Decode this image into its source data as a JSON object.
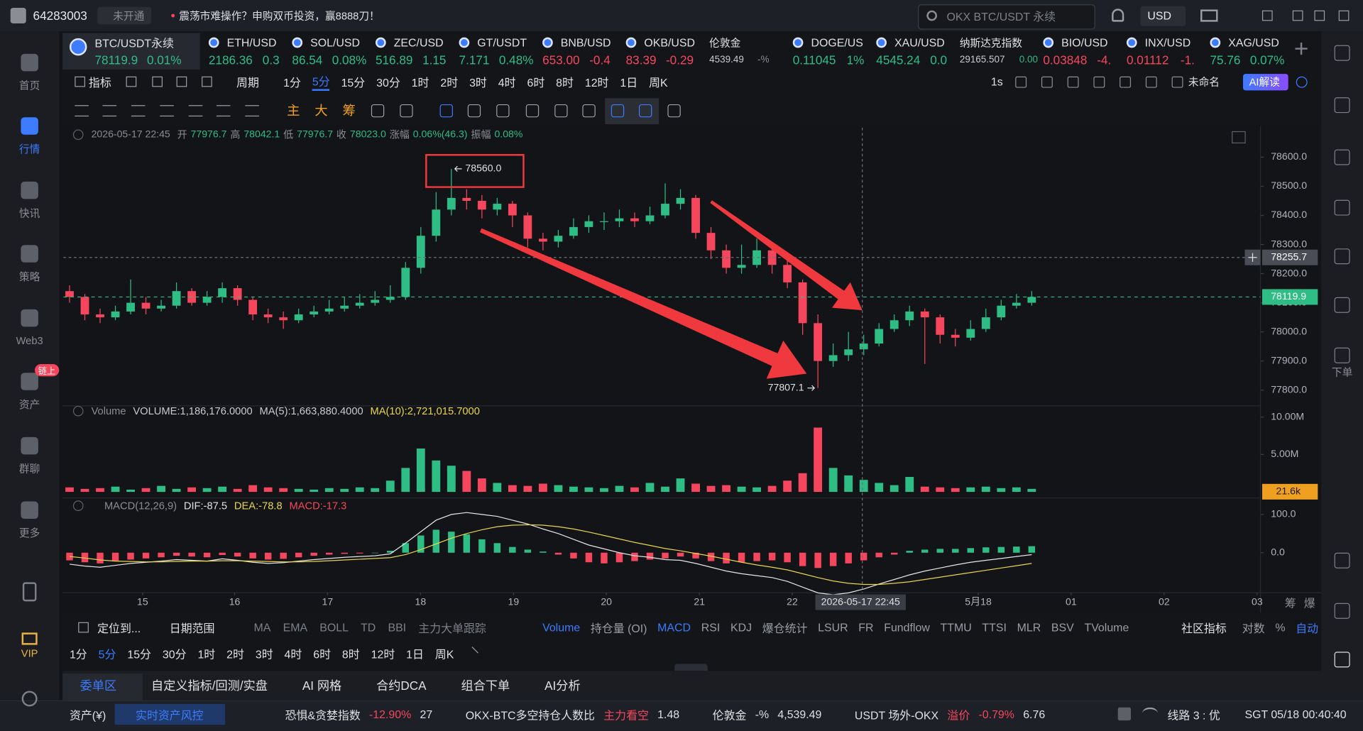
{
  "titlebar": {
    "uid": "64283003",
    "badge": "未开通",
    "notice": "震荡市难操作？申购双币投资，赢8888刀！",
    "search": "OKX BTC/USDT 永续",
    "currency": "USD"
  },
  "sidebar": {
    "items": [
      "首页",
      "行情",
      "快讯",
      "策略",
      "Web3",
      "资产",
      "群聊",
      "更多"
    ],
    "badge": "链上",
    "vip": "VIP"
  },
  "right_sidebar": {
    "order": "下单"
  },
  "tickers": [
    {
      "name": "BTC/USDT永续",
      "price": "78119.9",
      "change": "0.01%"
    },
    {
      "name": "ETH/USD",
      "price": "2186.36",
      "change": "0.3"
    },
    {
      "name": "SOL/USD",
      "price": "86.54",
      "change": "0.08%"
    },
    {
      "name": "ZEC/USD",
      "price": "516.89",
      "change": "1.15"
    },
    {
      "name": "GT/USDT",
      "price": "7.171",
      "change": "0.48%"
    },
    {
      "name": "BNB/USD",
      "price": "653.00",
      "change": "-0.4"
    },
    {
      "name": "OKB/USD",
      "price": "83.39",
      "change": "-0.29"
    },
    {
      "name": "伦敦金",
      "price": "4539.49",
      "change": "-%"
    },
    {
      "name": "DOGE/US",
      "price": "0.11045",
      "change": "1%"
    },
    {
      "name": "XAU/USD",
      "price": "4545.24",
      "change": "0.0"
    },
    {
      "name": "纳斯达克指数",
      "price": "29165.507",
      "change": "0.00"
    },
    {
      "name": "BIO/USD",
      "price": "0.03848",
      "change": "-4."
    },
    {
      "name": "INX/USD",
      "price": "0.01112",
      "change": "-1."
    },
    {
      "name": "XAG/USD",
      "price": "75.76",
      "change": "0.07%"
    }
  ],
  "toolbar": {
    "indicator": "指标",
    "period": "周期",
    "periods": [
      "1分",
      "5分",
      "15分",
      "30分",
      "1时",
      "2时",
      "3时",
      "4时",
      "6时",
      "8时",
      "12时",
      "1日",
      "周K"
    ],
    "interval": "1s",
    "layout": "未命名",
    "ai": "AI解读",
    "tools": [
      "主",
      "大",
      "筹"
    ]
  },
  "ohlc": [
    "2026-05-17 22:45",
    "开",
    "77976.7",
    "高",
    "78042.1",
    "低",
    "77976.7",
    "收",
    "78023.0",
    "涨幅",
    "0.06%(46.3)",
    "振幅",
    "0.08%"
  ],
  "volume_header": [
    "Volume",
    "VOLUME:1,186,176.0000",
    "MA(5):1,663,880.4000",
    "MA(10):2,721,015.7000"
  ],
  "macd_header": [
    "MACD(12,26,9)",
    "DIF:-87.5",
    "DEA:-78.8",
    "MACD:-17.3"
  ],
  "chart_side": [
    "筹",
    "爆"
  ],
  "indicators": {
    "locate": "定位到...",
    "range": "日期范围",
    "main": [
      "MA",
      "EMA",
      "BOLL",
      "TD",
      "BBI",
      "主力大单跟踪"
    ],
    "sub": [
      "Volume",
      "持仓量 (OI)",
      "MACD",
      "RSI",
      "KDJ",
      "爆仓统计",
      "LSUR",
      "FR",
      "Fundflow",
      "TTMU",
      "TTSI",
      "MLR",
      "BSV",
      "TVolume"
    ],
    "community": "社区指标",
    "options": [
      "对数",
      "%",
      "自动"
    ]
  },
  "tabs": [
    "委单区",
    "自定义指标/回测/实盘",
    "AI 网格",
    "合约DCA",
    "组合下单",
    "AI分析"
  ],
  "status": {
    "assets": "资产(¥)",
    "risk": "实时资产风控",
    "items": [
      "恐惧&贪婪指数",
      "-12.90%",
      "27",
      "OKX-BTC多空持仓人数比",
      "主力看空",
      "1.48",
      "伦敦金",
      "-%",
      "4,539.49",
      "USDT 场外-OKX",
      "溢价",
      "-0.79%",
      "6.76"
    ],
    "line": "线路 3 : 优",
    "time": "SGT 05/18 00:40:40"
  },
  "chart_data": [
    {
      "type": "candlestick",
      "up_color": "#2ebd85",
      "down_color": "#f6465d",
      "grid": false,
      "open": [
        78140,
        78120,
        78060,
        78050,
        78070,
        78100,
        78080,
        78090,
        78140,
        78100,
        78120,
        78150,
        78110,
        78060,
        78050,
        78040,
        78060,
        78070,
        78080,
        78090,
        78100,
        78110,
        78120,
        78220,
        78330,
        78420,
        78460,
        78450,
        78420,
        78440,
        78400,
        78320,
        78310,
        78330,
        78360,
        78380,
        78380,
        78390,
        78380,
        78400,
        78440,
        78460,
        78340,
        78280,
        78220,
        78230,
        78280,
        78230,
        78170,
        78030,
        77900,
        77920,
        77940,
        77960,
        78010,
        78040,
        78070,
        78050,
        77990,
        77980,
        78010,
        78050,
        78090,
        78100
      ],
      "high": [
        78160,
        78130,
        78080,
        78090,
        78180,
        78120,
        78110,
        78170,
        78150,
        78140,
        78170,
        78160,
        78120,
        78080,
        78070,
        78080,
        78090,
        78110,
        78120,
        78130,
        78140,
        78160,
        78240,
        78360,
        78480,
        78560,
        78490,
        78470,
        78460,
        78450,
        78410,
        78340,
        78350,
        78390,
        78400,
        78410,
        78420,
        78410,
        78430,
        78510,
        78490,
        78470,
        78360,
        78300,
        78300,
        78320,
        78290,
        78250,
        78180,
        78060,
        77960,
        78000,
        77990,
        78030,
        78060,
        78090,
        78080,
        78060,
        78010,
        78040,
        78080,
        78110,
        78130,
        78140
      ],
      "low": [
        78100,
        78040,
        78030,
        78040,
        78060,
        78060,
        78070,
        78080,
        78090,
        78090,
        78100,
        78090,
        78040,
        78030,
        78010,
        78030,
        78050,
        78060,
        78070,
        78080,
        78090,
        78100,
        78110,
        78200,
        78310,
        78400,
        78420,
        78390,
        78400,
        78360,
        78290,
        78280,
        78290,
        78320,
        78340,
        78350,
        78360,
        78360,
        78370,
        78390,
        78420,
        78320,
        78250,
        78200,
        78200,
        78220,
        78200,
        78150,
        77990,
        77807.1,
        77880,
        77900,
        77920,
        77950,
        78000,
        78020,
        77890,
        77960,
        77950,
        77970,
        78000,
        78040,
        78080,
        78090
      ],
      "close": [
        78120,
        78060,
        78050,
        78070,
        78100,
        78080,
        78090,
        78140,
        78100,
        78120,
        78150,
        78110,
        78060,
        78050,
        78040,
        78060,
        78070,
        78080,
        78090,
        78100,
        78110,
        78120,
        78220,
        78330,
        78420,
        78460,
        78450,
        78420,
        78440,
        78400,
        78320,
        78310,
        78330,
        78360,
        78380,
        78380,
        78390,
        78380,
        78400,
        78440,
        78460,
        78340,
        78280,
        78220,
        78230,
        78280,
        78230,
        78170,
        78030,
        77900,
        77920,
        77940,
        77960,
        78010,
        78040,
        78070,
        78050,
        77990,
        77980,
        78010,
        78050,
        78090,
        78100,
        78120
      ],
      "ylim": [
        77752,
        78701
      ],
      "yticks": [
        {
          "value": 77800,
          "label": "77800.0"
        },
        {
          "value": 77900,
          "label": "77900.0"
        },
        {
          "value": 78000,
          "label": "78000.0"
        },
        {
          "value": 78100,
          "label": "78100.0"
        },
        {
          "value": 78200,
          "label": "78200.0"
        },
        {
          "value": 78300,
          "label": "78300.0"
        },
        {
          "value": 78400,
          "label": "78400.0"
        },
        {
          "value": 78500,
          "label": "78500.0"
        },
        {
          "value": 78600,
          "label": "78600.0"
        }
      ],
      "xlim": [
        -0.4,
        79
      ],
      "xticks": [
        {
          "value": 4.78,
          "label": "15"
        },
        {
          "value": 10.81,
          "label": "16"
        },
        {
          "value": 16.89,
          "label": "17"
        },
        {
          "value": 22.98,
          "label": "18"
        },
        {
          "value": 29.07,
          "label": "19"
        },
        {
          "value": 35.15,
          "label": "20"
        },
        {
          "value": 41.24,
          "label": "21"
        },
        {
          "value": 47.32,
          "label": "22"
        },
        {
          "value": 59.5,
          "label": "5月18"
        },
        {
          "value": 65.58,
          "label": "01"
        },
        {
          "value": 71.67,
          "label": "02"
        },
        {
          "value": 77.76,
          "label": "03"
        }
      ],
      "last_price": 78119.9,
      "crosshair": {
        "time": "2026-05-17 22:45",
        "price": 78255.7
      },
      "annotations": [
        "78560.0",
        "77807.1"
      ]
    },
    {
      "type": "bar",
      "values": [
        600000,
        400000,
        500000,
        700000,
        300000,
        500000,
        800000,
        400000,
        600000,
        500000,
        700000,
        400000,
        900000,
        600000,
        500000,
        400000,
        300000,
        500000,
        400000,
        600000,
        500000,
        1500000,
        3200000,
        5800000,
        4200000,
        3500000,
        2800000,
        1800000,
        1200000,
        900000,
        800000,
        1100000,
        900000,
        700000,
        600000,
        500000,
        800000,
        600000,
        1200000,
        700000,
        1800000,
        1100000,
        800000,
        900000,
        700000,
        600000,
        800000,
        1500000,
        2500000,
        8600000,
        3200000,
        2200000,
        1600000,
        1200000,
        900000,
        2000000,
        700000,
        600000,
        500000,
        600000,
        700000,
        500000,
        600000,
        400000
      ],
      "ylim": [
        0,
        11740000
      ],
      "yticks": [
        {
          "value": 5000000,
          "label": "5.00M"
        },
        {
          "value": 10000000,
          "label": "10.00M"
        }
      ],
      "current": {
        "value": 21600,
        "label": "21.6k"
      }
    },
    {
      "type": "macd",
      "hist_up_color": "#2ebd85",
      "hist_down_color": "#f6465d",
      "dif_color": "#e6e6e6",
      "dea_color": "#e8d44d",
      "hist": [
        -20,
        -25,
        -28,
        -22,
        -18,
        -15,
        -12,
        -8,
        -10,
        -12,
        -6,
        -10,
        -15,
        -18,
        -16,
        -12,
        -8,
        -5,
        -3,
        -2,
        0,
        5,
        25,
        45,
        60,
        55,
        48,
        35,
        25,
        15,
        8,
        3,
        -5,
        -15,
        -25,
        -28,
        -25,
        -22,
        -18,
        -15,
        -10,
        -15,
        -22,
        -28,
        -25,
        -22,
        -20,
        -25,
        -35,
        -40,
        -35,
        -28,
        -20,
        -12,
        -5,
        5,
        8,
        10,
        10,
        12,
        14,
        15,
        16,
        17
      ],
      "dif": [
        -30,
        -35,
        -38,
        -33,
        -28,
        -25,
        -22,
        -18,
        -20,
        -22,
        -16,
        -20,
        -25,
        -28,
        -26,
        -22,
        -18,
        -15,
        -12,
        -10,
        -8,
        -3,
        25,
        55,
        85,
        100,
        105,
        100,
        95,
        85,
        75,
        62,
        50,
        35,
        20,
        10,
        0,
        -8,
        -12,
        -18,
        -20,
        -28,
        -38,
        -48,
        -55,
        -60,
        -65,
        -75,
        -90,
        -105,
        -110,
        -105,
        -95,
        -82,
        -70,
        -58,
        -48,
        -40,
        -32,
        -25,
        -20,
        -15,
        -10,
        -5
      ],
      "dea": [
        -10,
        -14,
        -19,
        -22,
        -23,
        -24,
        -24,
        -23,
        -22,
        -22,
        -21,
        -21,
        -22,
        -23,
        -24,
        -24,
        -23,
        -21,
        -19,
        -17,
        -15,
        -13,
        -5,
        8,
        23,
        38,
        50,
        60,
        68,
        72,
        73,
        72,
        68,
        62,
        54,
        45,
        36,
        27,
        19,
        11,
        5,
        -2,
        -9,
        -17,
        -25,
        -32,
        -38,
        -45,
        -55,
        -65,
        -74,
        -80,
        -83,
        -83,
        -80,
        -76,
        -70,
        -64,
        -58,
        -52,
        -46,
        -40,
        -34,
        -28
      ],
      "ylim": [
        -100,
        138.6
      ],
      "yticks": [
        {
          "value": 0,
          "label": "0.0"
        },
        {
          "value": 100,
          "label": "100.0"
        }
      ]
    }
  ]
}
